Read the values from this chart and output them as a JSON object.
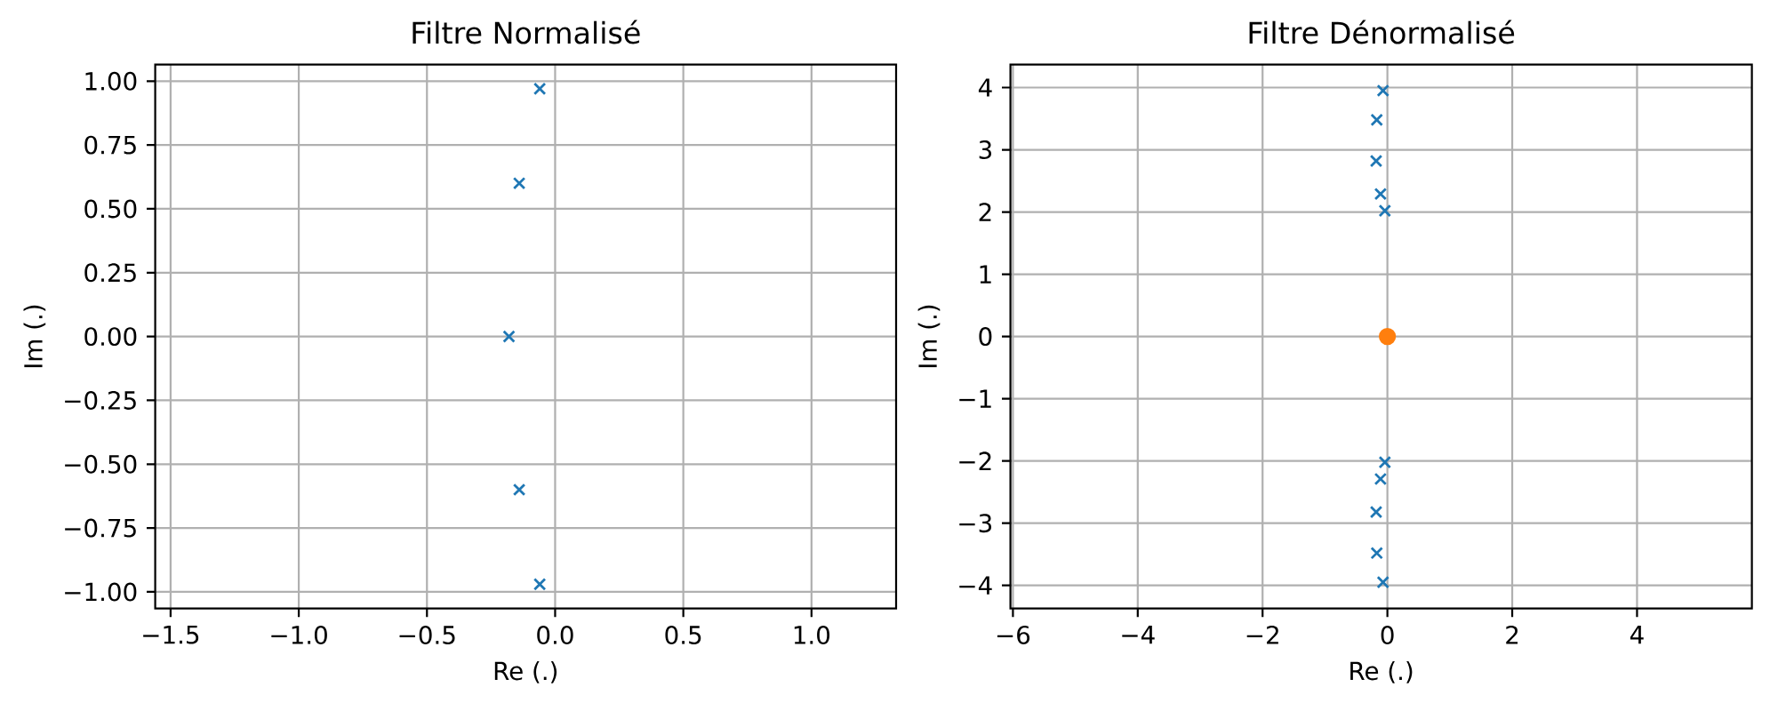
{
  "chart_data": [
    {
      "type": "scatter",
      "title": "Filtre Normalisé",
      "xlabel": "Re (.)",
      "ylabel": "Im (.)",
      "xlim": [
        -1.56,
        1.33
      ],
      "ylim": [
        -1.065,
        1.065
      ],
      "xticks": [
        {
          "value": -1.5,
          "label": "−1.5"
        },
        {
          "value": -1.0,
          "label": "−1.0"
        },
        {
          "value": -0.5,
          "label": "−0.5"
        },
        {
          "value": 0,
          "label": "0.0"
        },
        0.5,
        {
          "value": 1.0,
          "label": "1.0"
        }
      ],
      "yticks": [
        {
          "value": -1.0,
          "label": "−1.00"
        },
        {
          "value": -0.75,
          "label": "−0.75"
        },
        {
          "value": -0.5,
          "label": "−0.50"
        },
        {
          "value": -0.25,
          "label": "−0.25"
        },
        {
          "value": 0,
          "label": "0.00"
        },
        0.25,
        {
          "value": 0.5,
          "label": "0.50"
        },
        0.75,
        {
          "value": 1.0,
          "label": "1.00"
        }
      ],
      "grid": true,
      "series": [
        {
          "color": "#1f77b4",
          "marker": "cross",
          "x": [
            -0.06,
            -0.14,
            -0.18,
            -0.14,
            -0.06
          ],
          "values": [
            0.97,
            0.6,
            0,
            -0.6,
            -0.97
          ]
        }
      ]
    },
    {
      "type": "scatter",
      "title": "Filtre Dénormalisé",
      "xlabel": "Re (.)",
      "ylabel": "Im (.)",
      "xlim": [
        -6.04,
        5.84
      ],
      "ylim": [
        -4.37,
        4.37
      ],
      "xticks": [
        {
          "value": -6,
          "label": "−6"
        },
        {
          "value": -4,
          "label": "−4"
        },
        {
          "value": -2,
          "label": "−2"
        },
        0,
        2,
        4
      ],
      "yticks": [
        {
          "value": -4,
          "label": "−4"
        },
        {
          "value": -3,
          "label": "−3"
        },
        {
          "value": -2,
          "label": "−2"
        },
        {
          "value": -1,
          "label": "−1"
        },
        0,
        1,
        2,
        3,
        4
      ],
      "grid": true,
      "series": [
        {
          "color": "#1f77b4",
          "marker": "cross",
          "x": [
            -0.07,
            -0.17,
            -0.18,
            -0.11,
            -0.04,
            -0.04,
            -0.11,
            -0.18,
            -0.17,
            -0.07
          ],
          "values": [
            3.95,
            3.48,
            2.82,
            2.29,
            2.02,
            -2.02,
            -2.29,
            -2.82,
            -3.48,
            -3.95
          ]
        },
        {
          "color": "#ff7f0e",
          "marker": "circle",
          "x": [
            0
          ],
          "values": [
            0
          ]
        }
      ]
    }
  ]
}
